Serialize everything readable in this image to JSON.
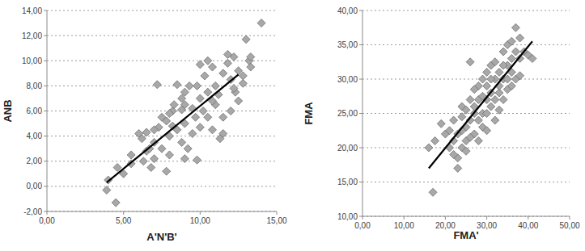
{
  "chart_data": [
    {
      "type": "scatter",
      "x_label": "A'N'B'",
      "y_label": "ANB",
      "grid": true,
      "xlim": [
        0,
        15
      ],
      "ylim": [
        -2,
        14
      ],
      "xticks": [
        {
          "value": 0,
          "label": "0,00"
        },
        {
          "value": 5,
          "label": "5,00"
        },
        {
          "value": 10,
          "label": "10,00"
        },
        {
          "value": 15,
          "label": "15,00"
        }
      ],
      "yticks": [
        {
          "value": -2,
          "label": "-2,00"
        },
        {
          "value": 0,
          "label": "0,00"
        },
        {
          "value": 2,
          "label": "2,00"
        },
        {
          "value": 4,
          "label": "4,00"
        },
        {
          "value": 6,
          "label": "6,00"
        },
        {
          "value": 8,
          "label": "8,00"
        },
        {
          "value": 10,
          "label": "10,00"
        },
        {
          "value": 12,
          "label": "12,00"
        },
        {
          "value": 14,
          "label": "14,00"
        }
      ],
      "series": [
        {
          "type": "scatter",
          "marker": "diamond",
          "color": "#a8a8a8",
          "x": [
            3.9,
            4.5,
            4.0,
            4.6,
            5.0,
            5.5,
            6.0,
            6.2,
            6.5,
            6.3,
            6.8,
            7.0,
            7.2,
            7.0,
            7.5,
            7.8,
            7.5,
            8.0,
            8.0,
            8.2,
            8.5,
            8.3,
            8.5,
            8.8,
            8.8,
            9.0,
            9.0,
            9.0,
            9.8,
            9.5,
            9.5,
            9.8,
            10.0,
            10.0,
            10.2,
            10.3,
            10.5,
            10.5,
            10.8,
            10.8,
            11.0,
            11.0,
            11.3,
            11.5,
            11.5,
            11.8,
            12.0,
            12.2,
            12.3,
            12.5,
            12.5,
            12.8,
            13.0,
            13.2,
            13.3,
            14.0,
            12.0,
            10.0,
            9.2,
            6.5,
            5.5,
            7.8,
            8.8,
            9.3,
            10.5,
            11.2,
            11.8,
            12.8,
            7.3,
            6.7,
            8.2,
            9.7,
            10.8,
            11.5,
            12.2,
            13.3,
            8.0,
            9.0,
            7.0
          ],
          "values": [
            -0.3,
            -1.3,
            0.5,
            1.5,
            1.0,
            2.5,
            4.2,
            3.8,
            4.3,
            2.0,
            1.5,
            2.2,
            8.1,
            3.5,
            3.0,
            5.2,
            5.5,
            2.5,
            4.0,
            6.0,
            8.1,
            6.5,
            4.5,
            7.0,
            3.5,
            5.0,
            7.5,
            2.2,
            2.1,
            6.2,
            4.2,
            8.0,
            9.7,
            7.0,
            6.0,
            8.8,
            5.5,
            7.5,
            9.5,
            4.5,
            6.5,
            8.0,
            3.8,
            4.2,
            9.0,
            10.5,
            8.5,
            10.3,
            7.5,
            6.8,
            9.2,
            8.8,
            11.7,
            10.0,
            9.5,
            13.0,
            6.0,
            4.7,
            3.0,
            2.8,
            1.8,
            1.2,
            6.1,
            8.0,
            10.0,
            7.3,
            9.8,
            8.2,
            4.7,
            3.0,
            4.8,
            5.5,
            6.8,
            5.5,
            7.8,
            10.3,
            5.8,
            6.5,
            4.5
          ]
        },
        {
          "type": "line",
          "color": "#000000",
          "x": [
            3.9,
            12.5
          ],
          "values": [
            0.3,
            8.9
          ]
        }
      ]
    },
    {
      "type": "scatter",
      "x_label": "FMA'",
      "y_label": "FMA",
      "grid": true,
      "xlim": [
        0,
        50
      ],
      "ylim": [
        10,
        40
      ],
      "xticks": [
        {
          "value": 0,
          "label": "0,00"
        },
        {
          "value": 10,
          "label": "10,00"
        },
        {
          "value": 20,
          "label": "20,00"
        },
        {
          "value": 30,
          "label": "30,00"
        },
        {
          "value": 40,
          "label": "40,00"
        },
        {
          "value": 50,
          "label": "50,00"
        }
      ],
      "yticks": [
        {
          "value": 10,
          "label": "10,00"
        },
        {
          "value": 15,
          "label": "15,00"
        },
        {
          "value": 20,
          "label": "20,00"
        },
        {
          "value": 25,
          "label": "25,00"
        },
        {
          "value": 30,
          "label": "30,00"
        },
        {
          "value": 35,
          "label": "35,00"
        },
        {
          "value": 40,
          "label": "40,00"
        }
      ],
      "series": [
        {
          "type": "scatter",
          "marker": "diamond",
          "color": "#a8a8a8",
          "x": [
            17,
            16,
            17.5,
            19,
            20,
            21,
            22,
            22,
            23,
            23,
            23,
            24,
            24,
            25,
            25,
            25,
            26,
            26,
            26,
            27,
            27,
            27,
            28,
            28,
            28,
            29,
            29,
            29,
            30,
            30,
            30,
            30,
            31,
            31,
            31,
            32,
            32,
            32,
            33,
            33,
            33,
            34,
            34,
            34,
            35,
            35,
            35,
            36,
            36,
            36,
            37,
            37,
            37,
            38,
            38,
            39,
            40,
            41,
            24,
            26,
            28,
            29,
            31,
            32,
            33,
            27,
            25,
            22,
            30,
            34,
            36,
            38,
            21,
            24,
            35
          ],
          "values": [
            13.5,
            20,
            21,
            23.5,
            22,
            20,
            21,
            24,
            17,
            18.5,
            22,
            26,
            20,
            23,
            21,
            25.5,
            24,
            27,
            32.5,
            22,
            25,
            26,
            24,
            27,
            29,
            25,
            30,
            23,
            27,
            31,
            22.5,
            29,
            26,
            28,
            32,
            30,
            24,
            27,
            29,
            31,
            25.5,
            30,
            34,
            27,
            32,
            35,
            28.5,
            33,
            35.5,
            31,
            37.5,
            30,
            34,
            33,
            36,
            34,
            33.5,
            33,
            22.5,
            21.5,
            21,
            27.5,
            30,
            32.5,
            28,
            28.5,
            19.5,
            19,
            25,
            32,
            29,
            30.5,
            22.5,
            24.5,
            30
          ]
        },
        {
          "type": "line",
          "color": "#000000",
          "x": [
            16,
            41
          ],
          "values": [
            17,
            35.5
          ]
        }
      ]
    }
  ]
}
